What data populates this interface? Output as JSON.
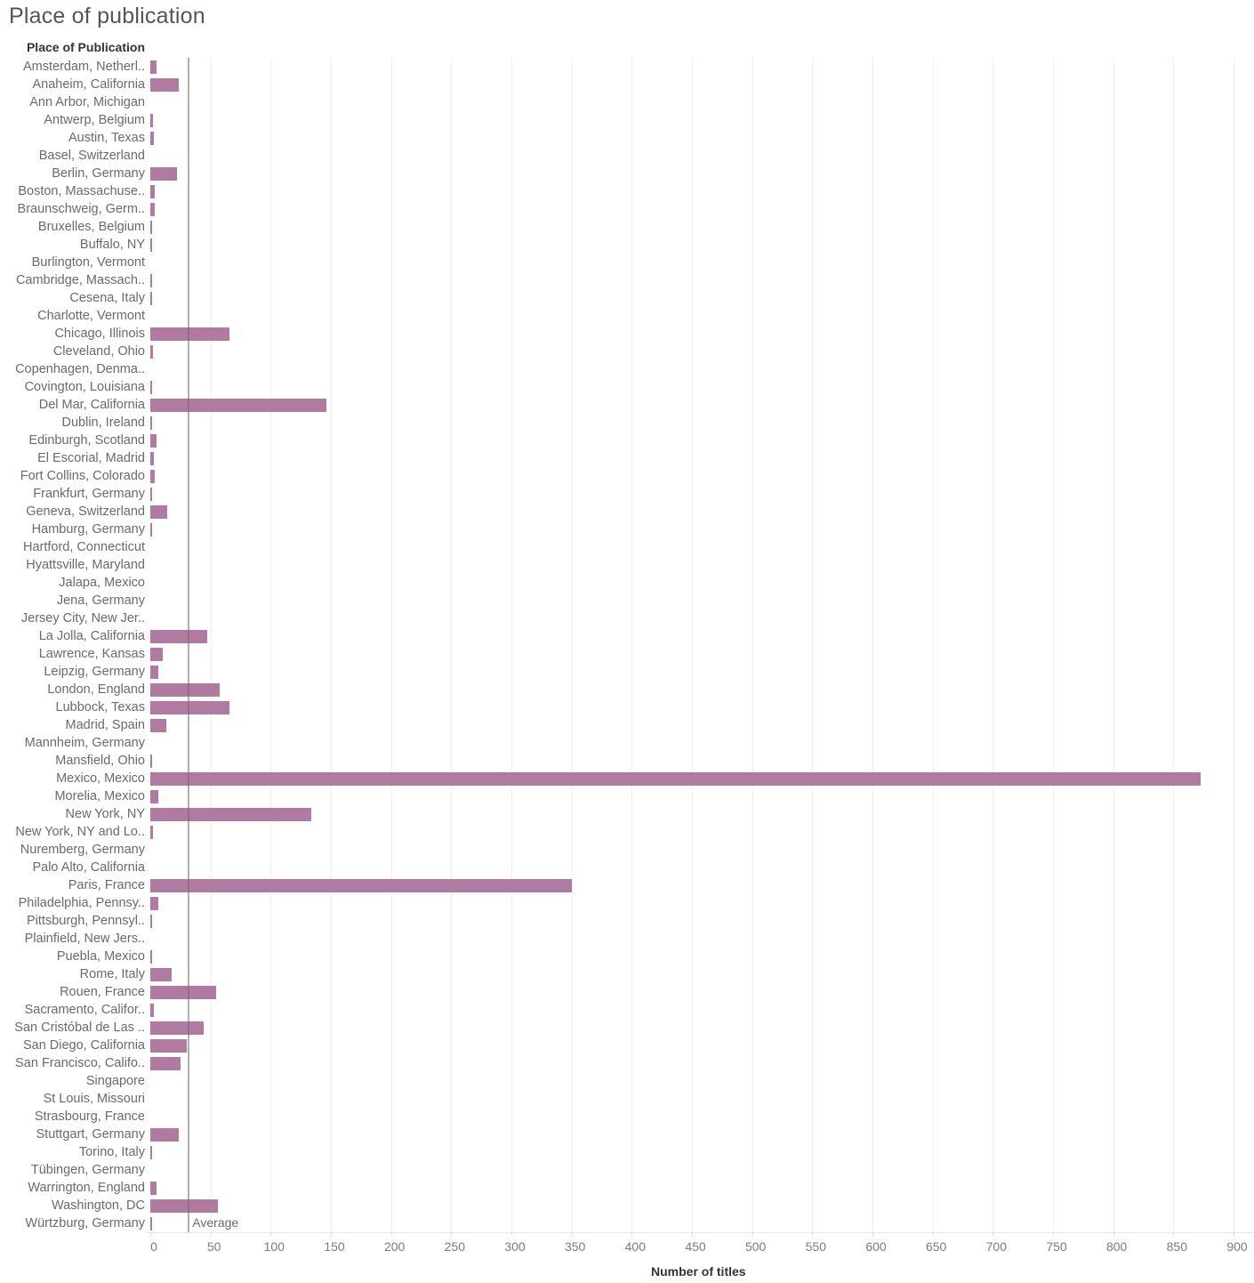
{
  "title": "Place of publication",
  "chart_data": {
    "type": "bar",
    "orientation": "horizontal",
    "title": "Place of publication",
    "ylabel": "Place of Publication",
    "xlabel": "Number of titles",
    "xlim": [
      0,
      900
    ],
    "xticks": [
      0,
      50,
      100,
      150,
      200,
      250,
      300,
      350,
      400,
      450,
      500,
      550,
      600,
      650,
      700,
      750,
      800,
      850,
      900
    ],
    "grid": true,
    "bar_color": "#b07aa1",
    "reference_line": {
      "label": "Average",
      "value": 32
    },
    "categories": [
      "Amsterdam, Netherl..",
      "Anaheim, California",
      "Ann Arbor, Michigan",
      "Antwerp, Belgium",
      "Austin, Texas",
      "Basel, Switzerland",
      "Berlin, Germany",
      "Boston, Massachuse..",
      "Braunschweig, Germ..",
      "Bruxelles, Belgium",
      "Buffalo, NY",
      "Burlington, Vermont",
      "Cambridge, Massach..",
      "Cesena, Italy",
      "Charlotte, Vermont",
      "Chicago, Illinois",
      "Cleveland, Ohio",
      "Copenhagen, Denma..",
      "Covington, Louisiana",
      "Del Mar, California",
      "Dublin, Ireland",
      "Edinburgh, Scotland",
      "El Escorial, Madrid",
      "Fort Collins, Colorado",
      "Frankfurt, Germany",
      "Geneva, Switzerland",
      "Hamburg, Germany",
      "Hartford, Connecticut",
      "Hyattsville, Maryland",
      "Jalapa, Mexico",
      "Jena, Germany",
      "Jersey City, New Jer..",
      "La Jolla, California",
      "Lawrence, Kansas",
      "Leipzig, Germany",
      "London, England",
      "Lubbock, Texas",
      "Madrid, Spain",
      "Mannheim, Germany",
      "Mansfield, Ohio",
      "Mexico, Mexico",
      "Morelia, Mexico",
      "New York, NY",
      "New York, NY and Lo..",
      "Nuremberg, Germany",
      "Palo Alto, California",
      "Paris, France",
      "Philadelphia, Pennsy..",
      "Pittsburgh, Pennsyl..",
      "Plainfield, New Jers..",
      "Puebla, Mexico",
      "Rome, Italy",
      "Rouen, France",
      "Sacramento, Califor..",
      "San Cristóbal de Las ..",
      "San Diego, California",
      "San Francisco, Califo..",
      "Singapore",
      "St Louis, Missouri",
      "Strasbourg, France",
      "Stuttgart, Germany",
      "Torino, Italy",
      "Tübingen, Germany",
      "Warrington, England",
      "Washington, DC",
      "Würtzburg, Germany"
    ],
    "values": [
      5,
      24,
      0,
      2,
      3,
      0,
      22,
      4,
      4,
      1,
      1,
      0,
      1,
      1,
      0,
      66,
      2,
      0,
      1,
      146,
      1,
      5,
      3,
      4,
      1,
      14,
      1,
      0,
      0,
      0,
      0,
      0,
      47,
      10,
      7,
      58,
      66,
      13,
      0,
      1,
      873,
      7,
      134,
      2,
      0,
      0,
      350,
      7,
      1,
      0,
      1,
      18,
      55,
      3,
      44,
      30,
      25,
      0,
      0,
      0,
      24,
      1,
      0,
      5,
      56,
      1
    ]
  }
}
